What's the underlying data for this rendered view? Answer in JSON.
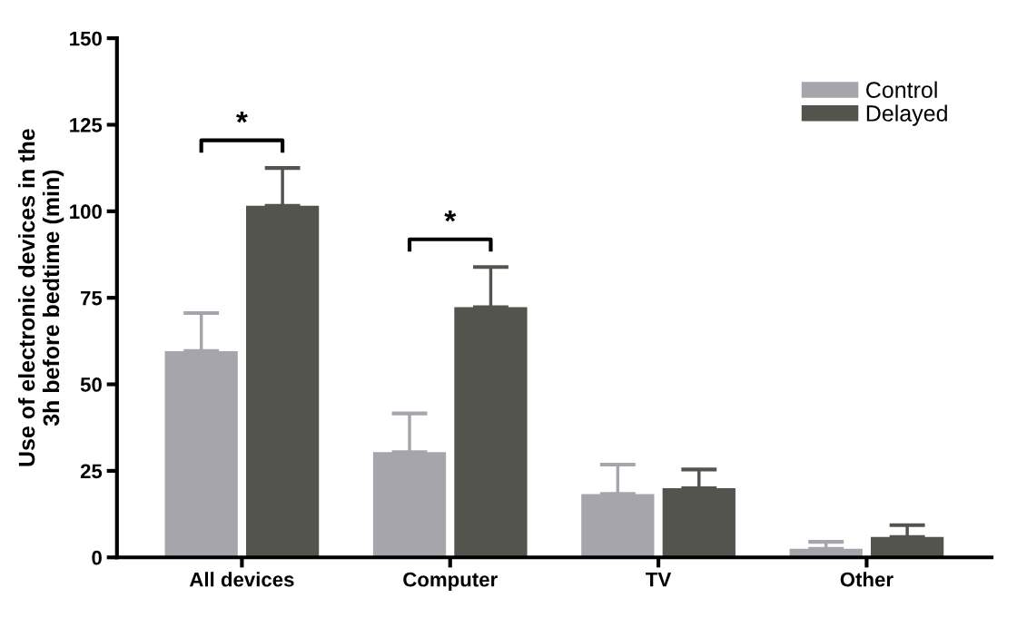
{
  "chart_data": {
    "type": "bar",
    "ylabel": "Use of electronic devices in the\n3h before bedtime (min)",
    "categories": [
      "All devices",
      "Computer",
      "TV",
      "Other"
    ],
    "series": [
      {
        "name": "Control",
        "color": "#a5a5ab",
        "values": [
          59.6,
          30.4,
          18.3,
          2.5
        ],
        "errors": [
          [
            59.6,
            70.6
          ],
          [
            30.4,
            41.6
          ],
          [
            18.3,
            26.8
          ],
          [
            2.5,
            4.5
          ]
        ]
      },
      {
        "name": "Delayed",
        "color": "#54544f",
        "values": [
          101.6,
          72.3,
          20,
          5.9
        ],
        "errors": [
          [
            101.6,
            112.5
          ],
          [
            72.3,
            83.9
          ],
          [
            20,
            25.4
          ],
          [
            5.9,
            9.3
          ]
        ]
      }
    ],
    "ylim": [
      0,
      150
    ],
    "yticks": [
      0,
      25,
      50,
      75,
      100,
      125,
      150
    ],
    "annotations": [
      "*",
      "*"
    ],
    "legend": "top right",
    "grid": false
  }
}
